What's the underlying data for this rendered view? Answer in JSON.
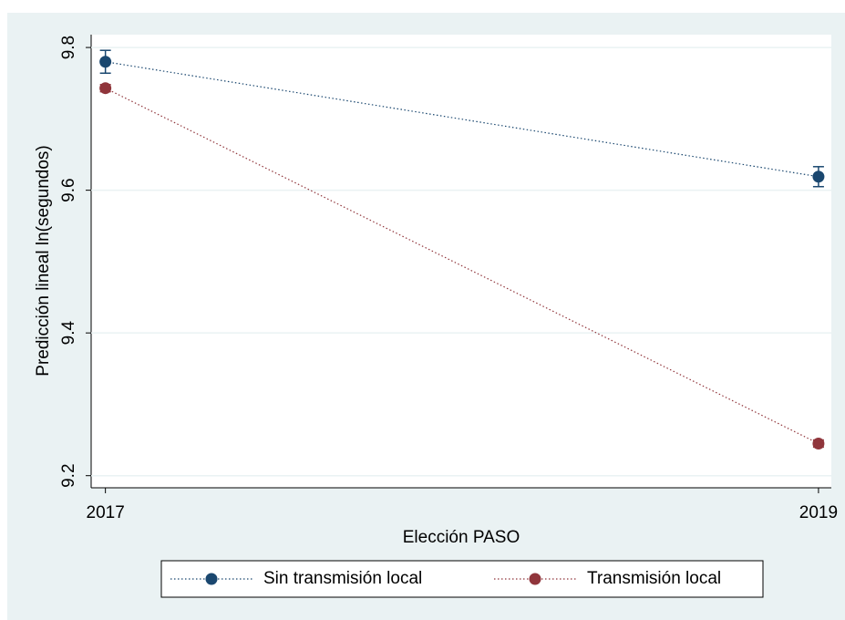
{
  "chart_data": {
    "type": "line",
    "x_label": "Elección PASO",
    "y_label": "Predicción lineal ln(segundos)",
    "x": [
      2017,
      2019
    ],
    "xlim": [
      2016.96,
      2019.036
    ],
    "xticks": [
      2017,
      2019
    ],
    "ylim": [
      9.183,
      9.818
    ],
    "yticks": [
      9.2,
      9.4,
      9.6,
      9.8
    ],
    "grid": true,
    "series": [
      {
        "name": "Sin transmisión local",
        "color": "#1a476f",
        "values": [
          9.78,
          9.619
        ],
        "errors": [
          0.016,
          0.014
        ]
      },
      {
        "name": "Transmisión local",
        "color": "#90353b",
        "values": [
          9.743,
          9.245
        ],
        "errors": [
          0.005,
          0.005
        ]
      }
    ]
  }
}
